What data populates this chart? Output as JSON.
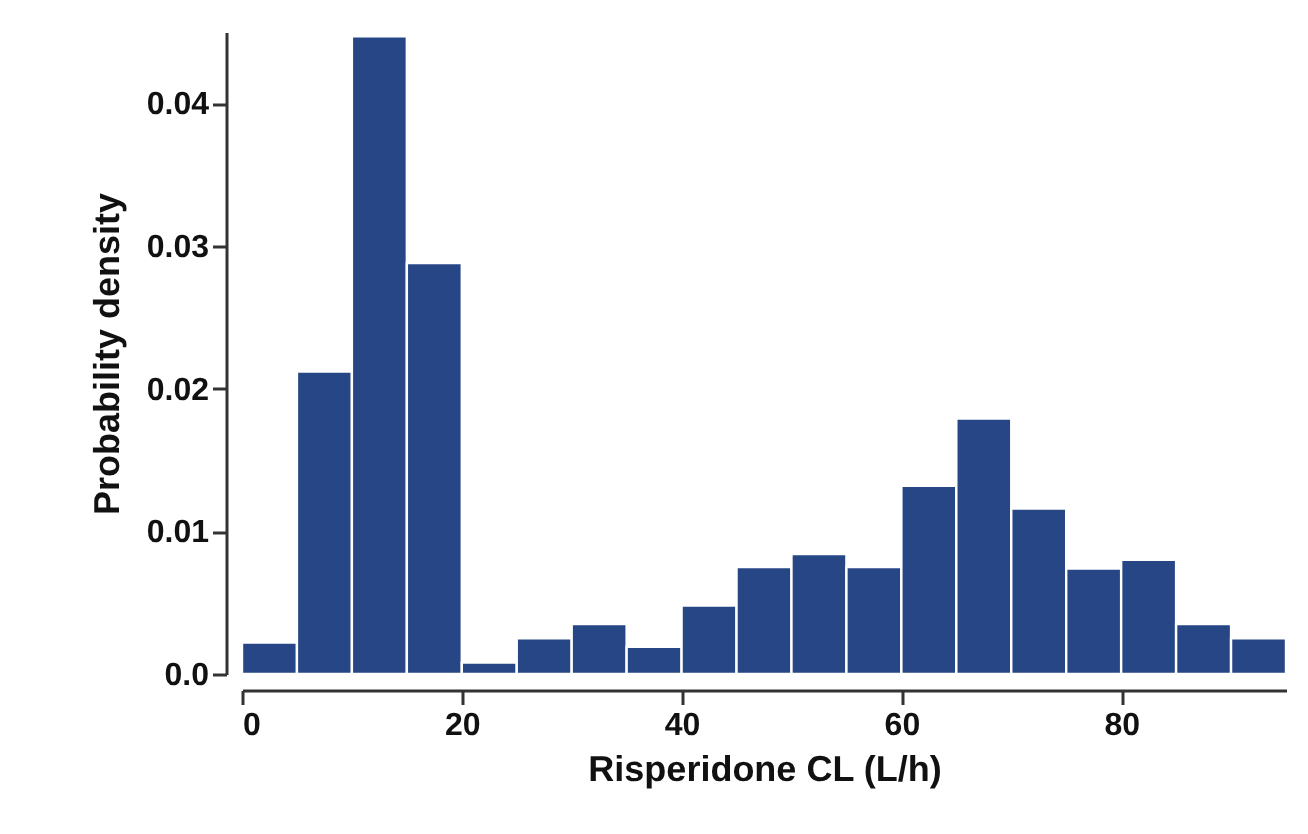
{
  "chart_data": {
    "type": "histogram",
    "xlabel": "Risperidone CL (L/h)",
    "ylabel": "Probability density",
    "bins": [
      0,
      5,
      10,
      15,
      20,
      25,
      30,
      35,
      40,
      45,
      50,
      55,
      60,
      65,
      70,
      75,
      80,
      85,
      90,
      95
    ],
    "values": [
      0.0022,
      0.0212,
      0.0447,
      0.0288,
      0.0008,
      0.0025,
      0.0035,
      0.0019,
      0.0048,
      0.0075,
      0.0084,
      0.0075,
      0.0132,
      0.0179,
      0.0116,
      0.0074,
      0.008,
      0.0035,
      0.0025
    ],
    "color": "#264686",
    "xlim": [
      0,
      95
    ],
    "xticks": [
      0,
      20,
      40,
      60,
      80
    ],
    "ylim": [
      0,
      0.045
    ],
    "yticks": [
      {
        "value": 0,
        "label": "0.0"
      },
      0.01,
      0.02,
      0.03,
      0.04
    ],
    "tick_labels": "xy"
  }
}
